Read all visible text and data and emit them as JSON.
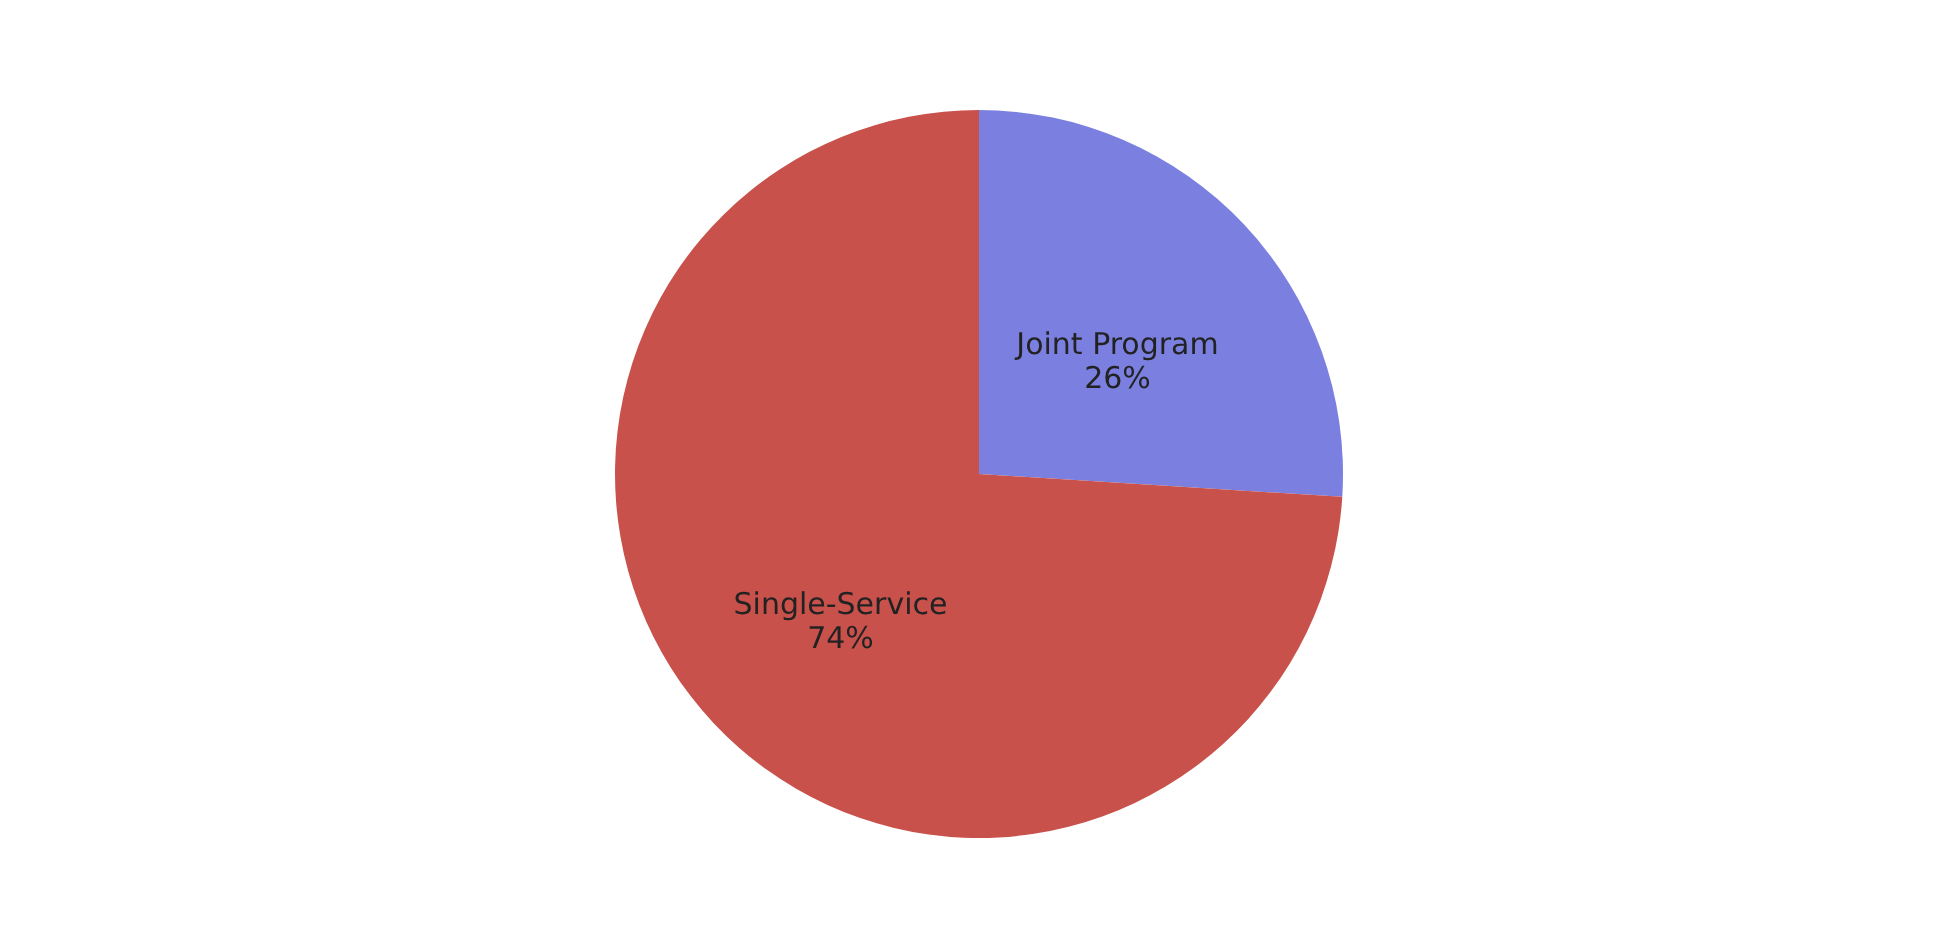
{
  "chart_data": {
    "type": "pie",
    "categories": [
      "Joint Program",
      "Single-Service"
    ],
    "values": [
      26,
      74
    ],
    "value_labels": [
      "26%",
      "74%"
    ],
    "colors": [
      "#7b80e0",
      "#c9514b"
    ],
    "legend": false
  }
}
